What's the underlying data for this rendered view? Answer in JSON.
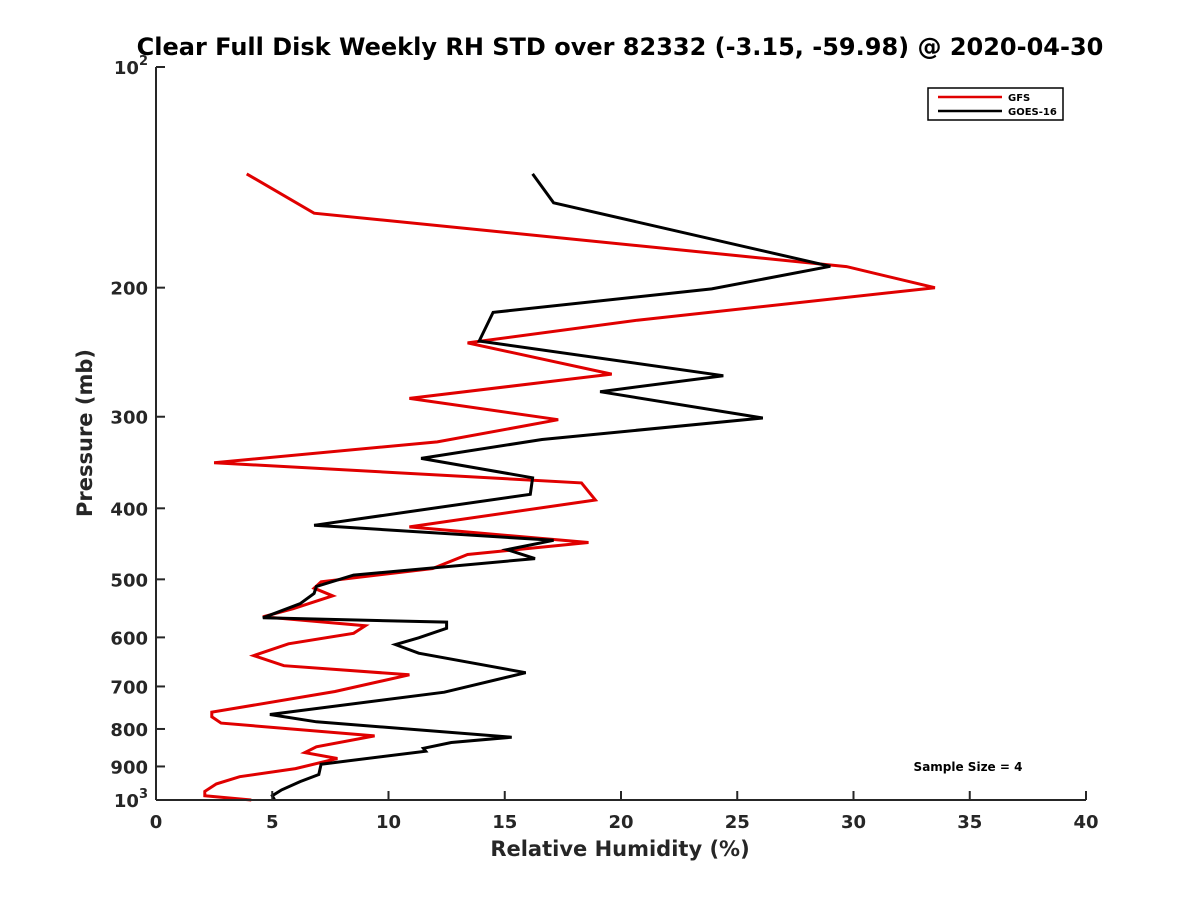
{
  "chart_data": {
    "type": "line",
    "title": "Clear Full Disk Weekly RH STD over 82332 (-3.15, -59.98) @ 2020-04-30",
    "xlabel": "Relative Humidity (%)",
    "ylabel": "Pressure (mb)",
    "xlim": [
      0,
      40
    ],
    "ylim": [
      100,
      1000
    ],
    "yscale": "log",
    "y_reversed": true,
    "grid": false,
    "legend_position": "top-right",
    "x_ticks": [
      0,
      5,
      10,
      15,
      20,
      25,
      30,
      35,
      40
    ],
    "y_ticks": [
      {
        "value": 100,
        "base": "10",
        "exp": "2"
      },
      {
        "value": 200,
        "label": "200"
      },
      {
        "value": 300,
        "label": "300"
      },
      {
        "value": 400,
        "label": "400"
      },
      {
        "value": 500,
        "label": "500"
      },
      {
        "value": 600,
        "label": "600"
      },
      {
        "value": 700,
        "label": "700"
      },
      {
        "value": 800,
        "label": "800"
      },
      {
        "value": 900,
        "label": "900"
      },
      {
        "value": 1000,
        "base": "10",
        "exp": "3"
      }
    ],
    "annotation": "Sample Size = 4",
    "series": [
      {
        "name": "GFS",
        "color": "#e00000",
        "points": [
          [
            3.9,
            139.9
          ],
          [
            6.8,
            158.3
          ],
          [
            29.7,
            187.2
          ],
          [
            33.5,
            200.0
          ],
          [
            20.7,
            221.5
          ],
          [
            13.4,
            237.9
          ],
          [
            19.6,
            262.4
          ],
          [
            10.9,
            283.2
          ],
          [
            17.3,
            302.8
          ],
          [
            12.1,
            324.7
          ],
          [
            2.5,
            346.6
          ],
          [
            18.3,
            369.3
          ],
          [
            18.9,
            389.7
          ],
          [
            10.9,
            424.0
          ],
          [
            18.6,
            445.3
          ],
          [
            13.4,
            462.5
          ],
          [
            11.9,
            483.2
          ],
          [
            7.1,
            503.8
          ],
          [
            6.8,
            514.1
          ],
          [
            7.6,
            526.6
          ],
          [
            5.9,
            548.3
          ],
          [
            4.6,
            562.4
          ],
          [
            9.0,
            578.4
          ],
          [
            8.5,
            592.4
          ],
          [
            5.7,
            612.2
          ],
          [
            4.2,
            635.4
          ],
          [
            5.5,
            655.9
          ],
          [
            10.9,
            674.8
          ],
          [
            7.7,
            711.1
          ],
          [
            2.4,
            758.9
          ],
          [
            2.4,
            770.0
          ],
          [
            2.8,
            785.4
          ],
          [
            9.4,
            817.6
          ],
          [
            6.9,
            846.1
          ],
          [
            6.4,
            861.7
          ],
          [
            7.8,
            877.7
          ],
          [
            6.0,
            906.0
          ],
          [
            3.6,
            929.4
          ],
          [
            2.6,
            950.7
          ],
          [
            2.1,
            973.2
          ],
          [
            2.1,
            986.9
          ],
          [
            4.1,
            1000.0
          ]
        ]
      },
      {
        "name": "GOES-16",
        "color": "#000000",
        "points": [
          [
            16.2,
            139.9
          ],
          [
            17.1,
            153.2
          ],
          [
            29.0,
            187.0
          ],
          [
            23.9,
            200.8
          ],
          [
            14.5,
            216.2
          ],
          [
            13.9,
            236.5
          ],
          [
            24.4,
            263.7
          ],
          [
            19.1,
            277.3
          ],
          [
            26.1,
            301.2
          ],
          [
            16.6,
            322.2
          ],
          [
            11.4,
            342.0
          ],
          [
            16.2,
            363.5
          ],
          [
            16.1,
            382.8
          ],
          [
            6.8,
            421.9
          ],
          [
            17.1,
            442.3
          ],
          [
            15.1,
            455.4
          ],
          [
            16.3,
            468.5
          ],
          [
            8.5,
            493.4
          ],
          [
            6.9,
            511.3
          ],
          [
            6.8,
            522.6
          ],
          [
            6.2,
            539.8
          ],
          [
            4.6,
            564.2
          ],
          [
            12.5,
            571.8
          ],
          [
            12.5,
            583.1
          ],
          [
            11.3,
            600.7
          ],
          [
            10.3,
            613.7
          ],
          [
            11.3,
            630.6
          ],
          [
            15.9,
            670.3
          ],
          [
            12.4,
            712.7
          ],
          [
            4.9,
            764.5
          ],
          [
            6.9,
            782.3
          ],
          [
            15.3,
            821.0
          ],
          [
            12.7,
            834.7
          ],
          [
            11.5,
            850.2
          ],
          [
            11.6,
            858.0
          ],
          [
            7.1,
            893.7
          ],
          [
            7.0,
            923.0
          ],
          [
            6.2,
            943.9
          ],
          [
            5.4,
            968.9
          ],
          [
            5.0,
            986.5
          ],
          [
            5.1,
            1000.0
          ]
        ]
      }
    ]
  }
}
